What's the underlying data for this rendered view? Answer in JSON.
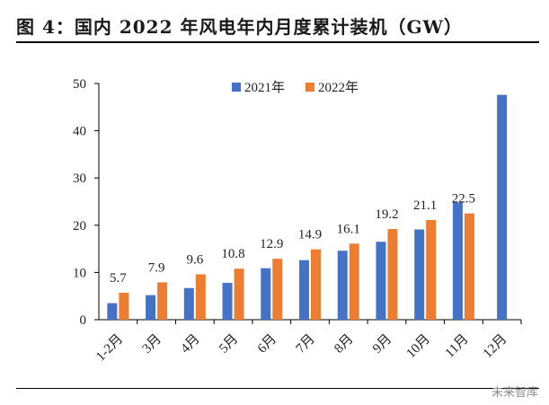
{
  "header": {
    "title": "图 4：国内 2022 年风电年内月度累计装机（GW）"
  },
  "watermark": "未来智库",
  "chart_data": {
    "type": "bar",
    "title": "图 4：国内 2022 年风电年内月度累计装机（GW）",
    "xlabel": "",
    "ylabel": "",
    "ylim": [
      0,
      50
    ],
    "yticks": [
      0,
      10,
      20,
      30,
      40,
      50
    ],
    "grid": false,
    "legend_position": "top-center",
    "categories": [
      "1-2月",
      "3月",
      "4月",
      "5月",
      "6月",
      "7月",
      "8月",
      "9月",
      "10月",
      "11月",
      "12月"
    ],
    "series": [
      {
        "name": "2021年",
        "color": "#4472C4",
        "values": [
          3.5,
          5.2,
          6.7,
          7.8,
          10.9,
          12.6,
          14.6,
          16.5,
          19.1,
          24.8,
          47.6
        ]
      },
      {
        "name": "2022年",
        "color": "#ED7D31",
        "values": [
          5.7,
          7.9,
          9.6,
          10.8,
          12.9,
          14.9,
          16.1,
          19.2,
          21.1,
          22.5,
          null
        ],
        "data_labels": [
          "5.7",
          "7.9",
          "9.6",
          "10.8",
          "12.9",
          "14.9",
          "16.1",
          "19.2",
          "21.1",
          "22.5",
          ""
        ]
      }
    ]
  }
}
